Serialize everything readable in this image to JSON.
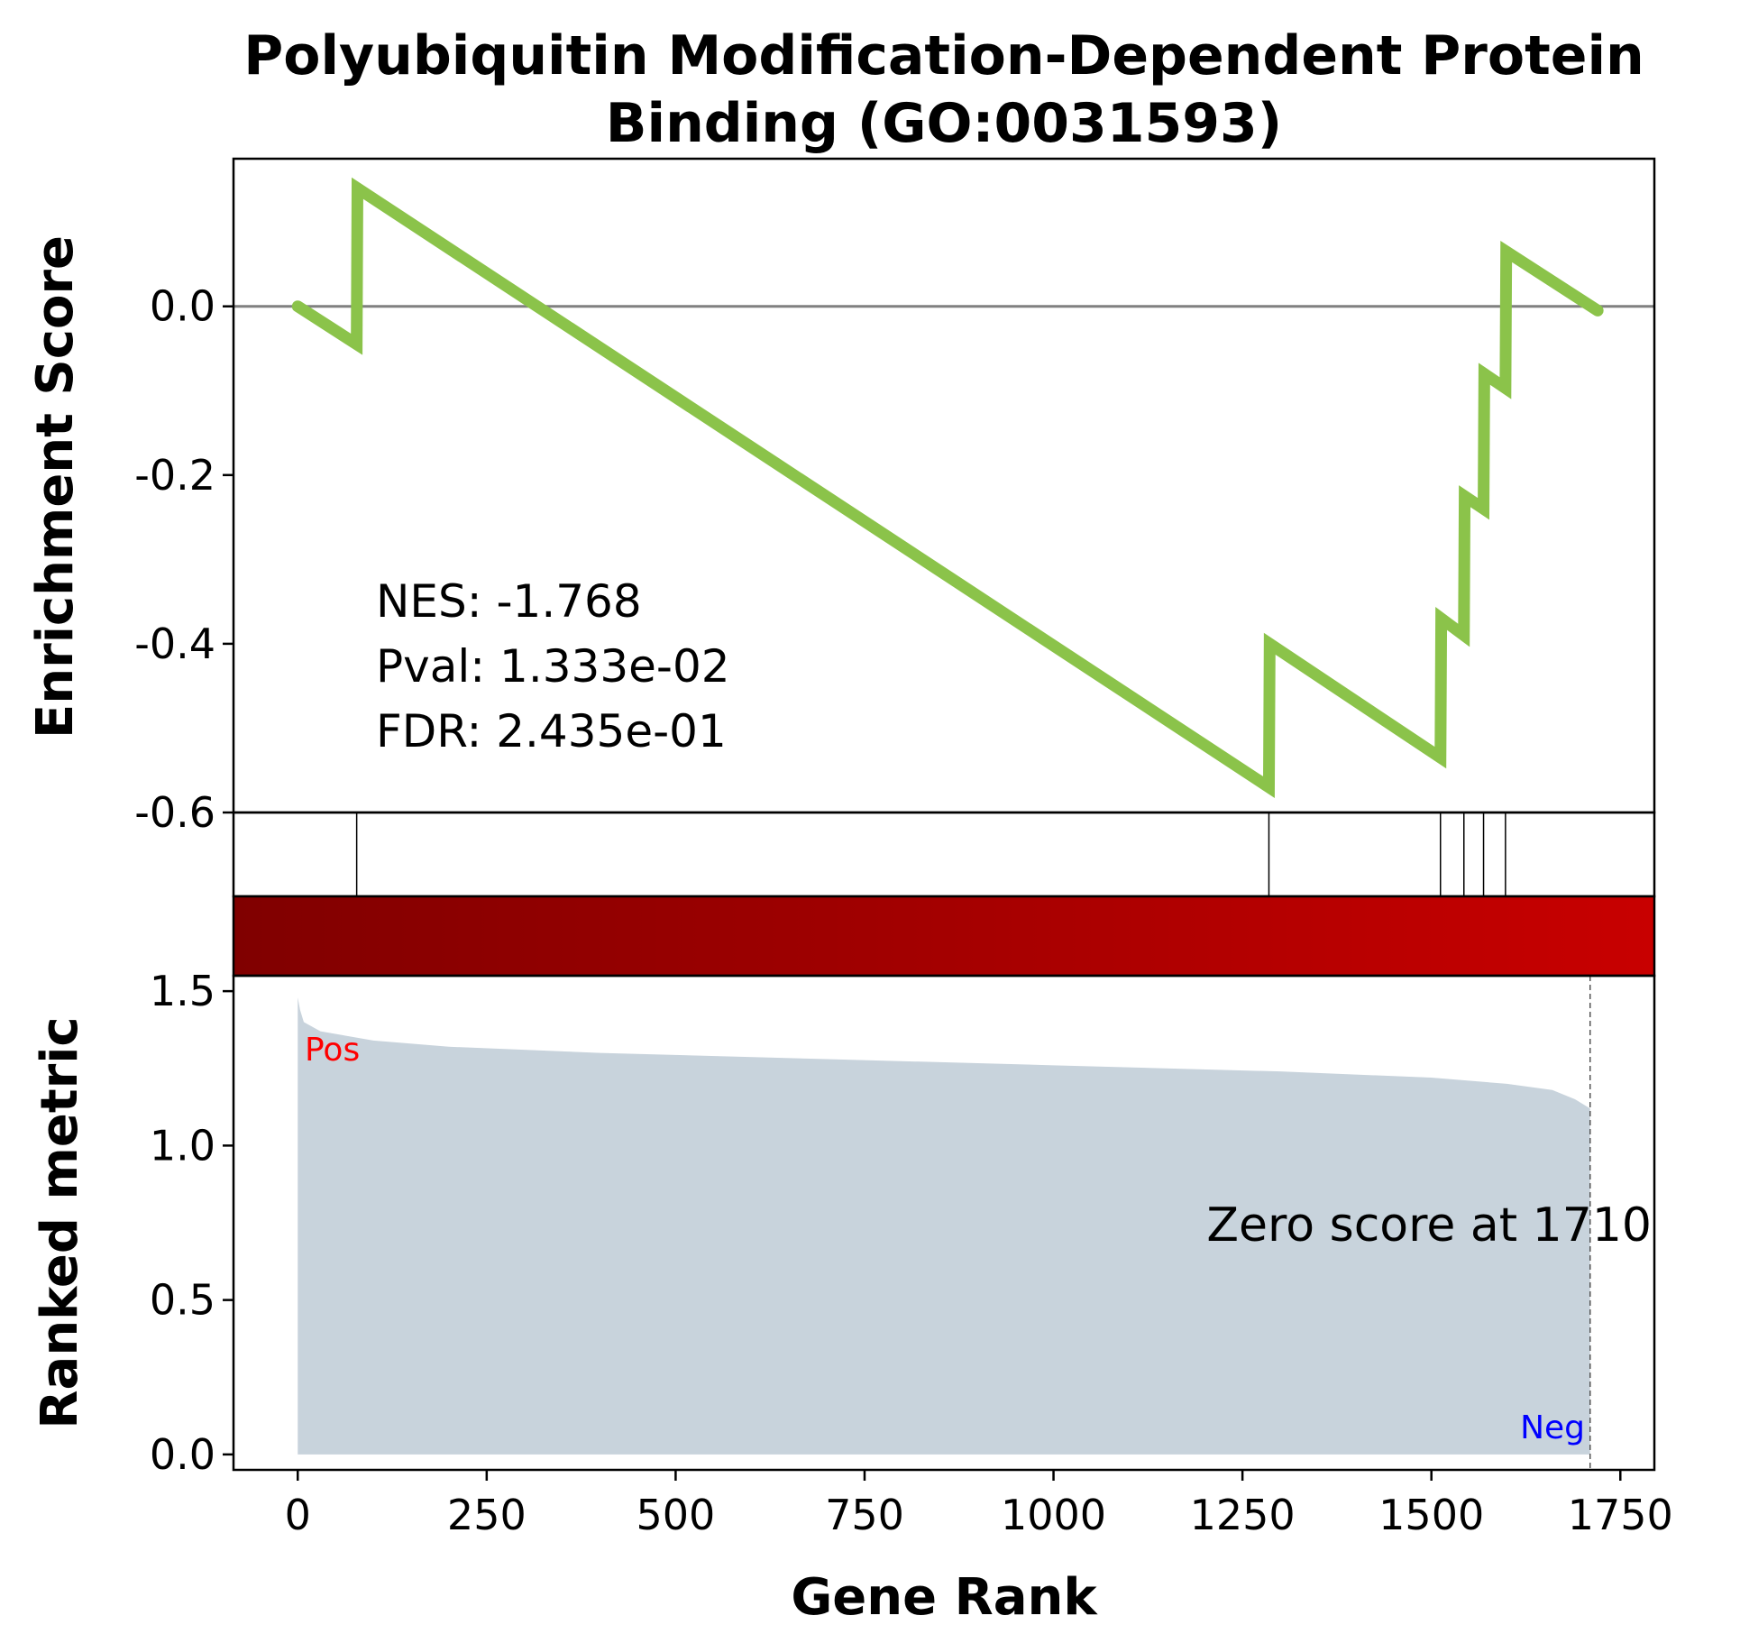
{
  "chart_data": {
    "type": "line",
    "title_lines": [
      "Polyubiquitin Modification-Dependent Protein",
      "Binding (GO:0031593)"
    ],
    "xlabel": "Gene Rank",
    "xlim": [
      -85,
      1795
    ],
    "x_ticks": [
      0,
      250,
      500,
      750,
      1000,
      1250,
      1500,
      1750
    ],
    "x_tick_labels": [
      "0",
      "250",
      "500",
      "750",
      "1000",
      "1250",
      "1500",
      "1750"
    ],
    "enrichment": {
      "ylabel": "Enrichment Score",
      "ylim": [
        -0.6,
        0.175
      ],
      "y_ticks": [
        0.0,
        -0.2,
        -0.4,
        -0.6
      ],
      "y_tick_labels": [
        "0.0",
        "-0.2",
        "-0.4",
        "-0.6"
      ],
      "line_color": "#8bc34a",
      "zero_line_color": "#808080",
      "x": [
        0,
        78,
        79,
        1285,
        1286,
        1512,
        1513,
        1543,
        1544,
        1569,
        1570,
        1598,
        1599,
        1720
      ],
      "y": [
        0.0,
        -0.045,
        0.14,
        -0.57,
        -0.4,
        -0.535,
        -0.37,
        -0.39,
        -0.225,
        -0.24,
        -0.08,
        -0.097,
        0.065,
        -0.005
      ],
      "stats_lines": [
        "NES: -1.768",
        "Pval: 1.333e-02",
        "FDR: 2.435e-01"
      ]
    },
    "hits": [
      78,
      1285,
      1512,
      1543,
      1569,
      1598
    ],
    "color_bar": {
      "from": "#800000",
      "to": "#c80000"
    },
    "ranked_metric": {
      "ylabel": "Ranked metric",
      "ylim": [
        -0.05,
        1.55
      ],
      "y_ticks": [
        0.0,
        0.5,
        1.0,
        1.5
      ],
      "y_tick_labels": [
        "0.0",
        "0.5",
        "1.0",
        "1.5"
      ],
      "fill_color": "#c8d3dc",
      "x": [
        0,
        3,
        8,
        30,
        100,
        200,
        400,
        700,
        1000,
        1300,
        1500,
        1600,
        1660,
        1690,
        1710
      ],
      "y": [
        1.48,
        1.44,
        1.4,
        1.37,
        1.34,
        1.32,
        1.3,
        1.28,
        1.26,
        1.24,
        1.22,
        1.2,
        1.18,
        1.15,
        1.12
      ],
      "zero_rank": 1710,
      "zero_label": "Zero score at 1710",
      "pos_label": "Pos",
      "neg_label": "Neg",
      "pos_color": "#ff0000",
      "neg_color": "#0000ff"
    }
  }
}
